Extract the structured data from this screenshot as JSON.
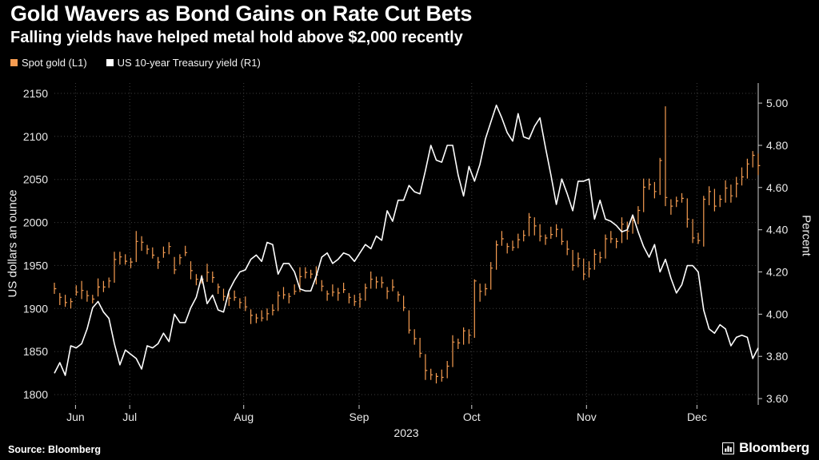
{
  "header": {
    "title": "Gold Wavers as Bond Gains on Rate Cut Bets",
    "subtitle": "Falling yields have helped metal hold above $2,000 recently"
  },
  "legend": [
    {
      "label": "Spot gold (L1)",
      "color": "#F59C51"
    },
    {
      "label": "US 10-year Treasury yield (R1)",
      "color": "#FFFFFF"
    }
  ],
  "footer": {
    "source": "Source: Bloomberg",
    "brand": "Bloomberg"
  },
  "chart_data": {
    "type": "mixed",
    "grid": true,
    "x_axis": {
      "year": "2023",
      "month_labels": [
        "Jun",
        "Jul",
        "Aug",
        "Sep",
        "Oct",
        "Nov",
        "Dec"
      ],
      "month_positions": [
        0.03,
        0.107,
        0.269,
        0.433,
        0.593,
        0.756,
        0.913
      ]
    },
    "left_axis": {
      "title": "US dollars an ounce",
      "ticks": [
        1800,
        1850,
        1900,
        1950,
        2000,
        2050,
        2100,
        2150
      ],
      "range": [
        1788,
        2162
      ]
    },
    "right_axis": {
      "title": "Percent",
      "ticks": [
        "3.60",
        "3.80",
        "4.00",
        "4.20",
        "4.40",
        "4.60",
        "4.80",
        "5.00"
      ],
      "tick_values": [
        3.6,
        3.8,
        4.0,
        4.2,
        4.4,
        4.6,
        4.8,
        5.0
      ],
      "range": [
        3.57,
        5.095
      ]
    },
    "series": [
      {
        "name": "Spot gold (L1)",
        "type": "hlc-bar",
        "axis": "left",
        "color": "#F59C51",
        "close": [
          1923,
          1913,
          1907,
          1908,
          1919,
          1921,
          1915,
          1911,
          1925,
          1925,
          1932,
          1957,
          1960,
          1955,
          1954,
          1978,
          1977,
          1969,
          1962,
          1954,
          1965,
          1972,
          1945,
          1959,
          1965,
          1944,
          1934,
          1934,
          1942,
          1936,
          1925,
          1914,
          1912,
          1913,
          1907,
          1902,
          1892,
          1889,
          1889,
          1894,
          1898,
          1915,
          1916,
          1914,
          1920,
          1937,
          1942,
          1940,
          1939,
          1926,
          1917,
          1919,
          1918,
          1922,
          1913,
          1908,
          1911,
          1924,
          1934,
          1931,
          1930,
          1920,
          1925,
          1916,
          1901,
          1875,
          1865,
          1848,
          1828,
          1823,
          1821,
          1820,
          1833,
          1861,
          1860,
          1874,
          1869,
          1932,
          1920,
          1923,
          1947,
          1974,
          1981,
          1972,
          1971,
          1980,
          1985,
          2006,
          1996,
          1984,
          1982,
          1986,
          1992,
          1978,
          1969,
          1950,
          1958,
          1940,
          1946,
          1963,
          1959,
          1981,
          1981,
          1978,
          1998,
          1990,
          2002,
          2014,
          2041,
          2044,
          2036,
          2072,
          2029,
          2019,
          2025,
          2028,
          2004,
          1982,
          1979,
          2027,
          2036,
          2019,
          2027,
          2040,
          2031,
          2045,
          2053,
          2068,
          2078,
          2066
        ],
        "high": [
          1930,
          1918,
          1916,
          1912,
          1927,
          1932,
          1921,
          1916,
          1935,
          1932,
          1936,
          1966,
          1966,
          1963,
          1959,
          1990,
          1984,
          1974,
          1971,
          1960,
          1972,
          1977,
          1960,
          1963,
          1973,
          1955,
          1940,
          1939,
          1952,
          1943,
          1929,
          1923,
          1918,
          1921,
          1912,
          1914,
          1899,
          1894,
          1898,
          1900,
          1905,
          1920,
          1925,
          1918,
          1928,
          1948,
          1948,
          1945,
          1949,
          1933,
          1921,
          1928,
          1924,
          1930,
          1918,
          1916,
          1918,
          1929,
          1943,
          1937,
          1937,
          1925,
          1934,
          1920,
          1915,
          1898,
          1876,
          1866,
          1847,
          1830,
          1825,
          1829,
          1839,
          1869,
          1865,
          1878,
          1876,
          1934,
          1929,
          1929,
          1954,
          1979,
          1990,
          1976,
          1979,
          1987,
          1991,
          2011,
          2006,
          1998,
          1986,
          1995,
          1998,
          1993,
          1979,
          1968,
          1965,
          1958,
          1955,
          1969,
          1966,
          1986,
          1990,
          1982,
          2006,
          2001,
          2008,
          2019,
          2051,
          2051,
          2047,
          2075,
          2135,
          2027,
          2030,
          2034,
          2028,
          2004,
          1988,
          2031,
          2042,
          2039,
          2032,
          2049,
          2044,
          2053,
          2064,
          2074,
          2083,
          2080
        ],
        "low": [
          1917,
          1904,
          1902,
          1900,
          1915,
          1911,
          1908,
          1906,
          1914,
          1919,
          1924,
          1930,
          1951,
          1951,
          1947,
          1954,
          1967,
          1963,
          1958,
          1946,
          1959,
          1963,
          1940,
          1951,
          1961,
          1934,
          1927,
          1929,
          1931,
          1930,
          1917,
          1909,
          1903,
          1909,
          1900,
          1897,
          1882,
          1883,
          1885,
          1886,
          1892,
          1897,
          1911,
          1906,
          1916,
          1919,
          1935,
          1935,
          1928,
          1920,
          1909,
          1914,
          1909,
          1918,
          1906,
          1903,
          1901,
          1909,
          1923,
          1923,
          1924,
          1911,
          1920,
          1908,
          1897,
          1871,
          1858,
          1843,
          1817,
          1817,
          1813,
          1815,
          1819,
          1832,
          1853,
          1858,
          1859,
          1866,
          1908,
          1915,
          1922,
          1945,
          1973,
          1964,
          1967,
          1970,
          1978,
          1984,
          1985,
          1978,
          1974,
          1981,
          1983,
          1974,
          1962,
          1944,
          1948,
          1933,
          1936,
          1945,
          1953,
          1958,
          1976,
          1970,
          1976,
          1980,
          1987,
          1998,
          2012,
          2038,
          2028,
          2032,
          2019,
          2009,
          2018,
          2023,
          1994,
          1976,
          1975,
          1972,
          2020,
          2013,
          2018,
          2023,
          2023,
          2029,
          2043,
          2051,
          2064,
          2055
        ]
      },
      {
        "name": "US 10-year Treasury yield (R1)",
        "type": "line",
        "axis": "right",
        "color": "#FFFFFF",
        "values": [
          3.72,
          3.77,
          3.71,
          3.85,
          3.84,
          3.86,
          3.93,
          4.03,
          4.06,
          4.01,
          3.98,
          3.86,
          3.76,
          3.83,
          3.81,
          3.79,
          3.74,
          3.85,
          3.84,
          3.86,
          3.91,
          3.87,
          4.0,
          3.96,
          3.96,
          4.03,
          4.08,
          4.18,
          4.05,
          4.09,
          4.02,
          4.01,
          4.11,
          4.16,
          4.2,
          4.21,
          4.26,
          4.28,
          4.25,
          4.34,
          4.33,
          4.19,
          4.24,
          4.24,
          4.2,
          4.12,
          4.11,
          4.11,
          4.18,
          4.27,
          4.29,
          4.24,
          4.26,
          4.29,
          4.28,
          4.25,
          4.29,
          4.33,
          4.31,
          4.37,
          4.35,
          4.49,
          4.44,
          4.54,
          4.54,
          4.61,
          4.58,
          4.57,
          4.68,
          4.8,
          4.73,
          4.72,
          4.8,
          4.8,
          4.66,
          4.56,
          4.7,
          4.63,
          4.71,
          4.83,
          4.91,
          4.99,
          4.93,
          4.86,
          4.82,
          4.95,
          4.84,
          4.83,
          4.89,
          4.93,
          4.79,
          4.66,
          4.52,
          4.64,
          4.57,
          4.49,
          4.63,
          4.63,
          4.64,
          4.45,
          4.54,
          4.45,
          4.44,
          4.42,
          4.39,
          4.4,
          4.47,
          4.39,
          4.32,
          4.27,
          4.33,
          4.2,
          4.26,
          4.17,
          4.1,
          4.14,
          4.23,
          4.23,
          4.2,
          4.02,
          3.93,
          3.91,
          3.95,
          3.93,
          3.85,
          3.89,
          3.9,
          3.89,
          3.79,
          3.84
        ]
      }
    ]
  }
}
